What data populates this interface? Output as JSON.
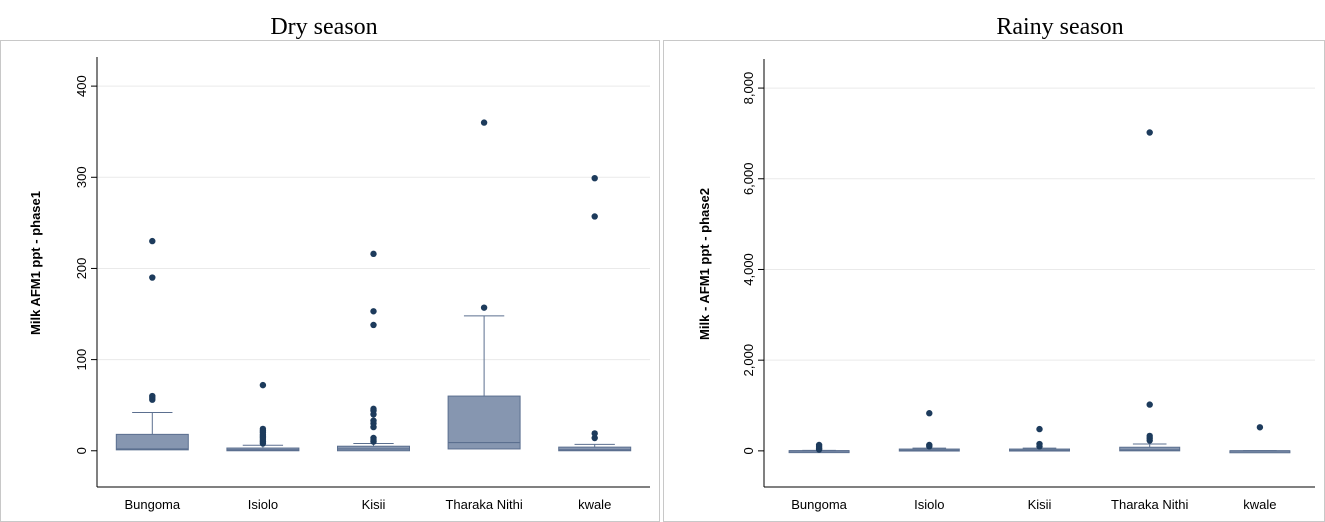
{
  "chart_data": [
    {
      "type": "box",
      "title": "Dry season",
      "ylabel": "Milk AFM1 ppt - phase1",
      "ylim": [
        -20,
        410
      ],
      "yticks": [
        0,
        100,
        200,
        300,
        400
      ],
      "ytick_labels": [
        "0",
        "100",
        "200",
        "300",
        "400"
      ],
      "categories": [
        "Bungoma",
        "Isiolo",
        "Kisii",
        "Tharaka Nithi",
        "kwale"
      ],
      "boxes": [
        {
          "q1": 1,
          "median": 2,
          "q3": 18,
          "whisker_low": 0,
          "whisker_high": 42,
          "outliers": [
            56,
            58,
            60,
            190,
            230
          ]
        },
        {
          "q1": 0,
          "median": 1,
          "q3": 3,
          "whisker_low": 0,
          "whisker_high": 6,
          "outliers": [
            8,
            10,
            12,
            14,
            16,
            18,
            20,
            22,
            24,
            72
          ]
        },
        {
          "q1": 0,
          "median": 2,
          "q3": 5,
          "whisker_low": 0,
          "whisker_high": 8,
          "outliers": [
            10,
            12,
            14,
            26,
            30,
            33,
            40,
            44,
            46,
            138,
            153,
            216
          ]
        },
        {
          "q1": 2,
          "median": 9,
          "q3": 60,
          "whisker_low": 0,
          "whisker_high": 148,
          "outliers": [
            157,
            360
          ]
        },
        {
          "q1": 0,
          "median": 1,
          "q3": 4,
          "whisker_low": 0,
          "whisker_high": 7,
          "outliers": [
            14,
            19,
            257,
            299
          ]
        }
      ],
      "box_color": "#8696b0",
      "outlier_color": "#1d3b5c"
    },
    {
      "type": "box",
      "title": "Rainy season",
      "ylabel": "Milk - AFM1 ppt - phase2",
      "ylim": [
        -400,
        8200
      ],
      "yticks": [
        0,
        2000,
        4000,
        6000,
        8000
      ],
      "ytick_labels": [
        "0",
        "2,000",
        "4,000",
        "6,000",
        "8,000"
      ],
      "categories": [
        "Bungoma",
        "Isiolo",
        "Kisii",
        "Tharaka Nithi",
        "kwale"
      ],
      "boxes": [
        {
          "q1": 0,
          "median": 0,
          "q3": 5,
          "whisker_low": 0,
          "whisker_high": 10,
          "outliers": [
            30,
            60,
            100,
            130
          ]
        },
        {
          "q1": 0,
          "median": 10,
          "q3": 40,
          "whisker_low": 0,
          "whisker_high": 60,
          "outliers": [
            100,
            130,
            830
          ]
        },
        {
          "q1": 0,
          "median": 10,
          "q3": 40,
          "whisker_low": 0,
          "whisker_high": 60,
          "outliers": [
            100,
            150,
            480
          ]
        },
        {
          "q1": 0,
          "median": 20,
          "q3": 80,
          "whisker_low": 0,
          "whisker_high": 150,
          "outliers": [
            230,
            280,
            330,
            1020,
            7020
          ]
        },
        {
          "q1": 0,
          "median": 0,
          "q3": 2,
          "whisker_low": 0,
          "whisker_high": 4,
          "outliers": [
            520
          ]
        }
      ],
      "box_color": "#8696b0",
      "outlier_color": "#1d3b5c"
    }
  ]
}
